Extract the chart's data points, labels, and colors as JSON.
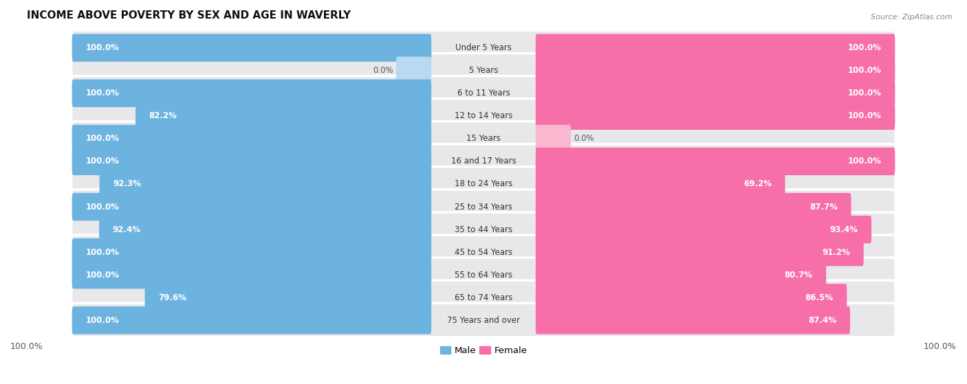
{
  "title": "INCOME ABOVE POVERTY BY SEX AND AGE IN WAVERLY",
  "source": "Source: ZipAtlas.com",
  "categories": [
    "Under 5 Years",
    "5 Years",
    "6 to 11 Years",
    "12 to 14 Years",
    "15 Years",
    "16 and 17 Years",
    "18 to 24 Years",
    "25 to 34 Years",
    "35 to 44 Years",
    "45 to 54 Years",
    "55 to 64 Years",
    "65 to 74 Years",
    "75 Years and over"
  ],
  "male": [
    100.0,
    0.0,
    100.0,
    82.2,
    100.0,
    100.0,
    92.3,
    100.0,
    92.4,
    100.0,
    100.0,
    79.6,
    100.0
  ],
  "female": [
    100.0,
    100.0,
    100.0,
    100.0,
    0.0,
    100.0,
    69.2,
    87.7,
    93.4,
    91.2,
    80.7,
    86.5,
    87.4
  ],
  "male_color": "#6db3e0",
  "female_color": "#f76fa8",
  "male_color_light": "#b8d9f0",
  "female_color_light": "#f9b8d0",
  "track_color": "#e8e8eb",
  "bg_color": "#f5f5f5",
  "legend_male": "Male",
  "legend_female": "Female",
  "value_fontsize": 8.5,
  "cat_fontsize": 8.5
}
